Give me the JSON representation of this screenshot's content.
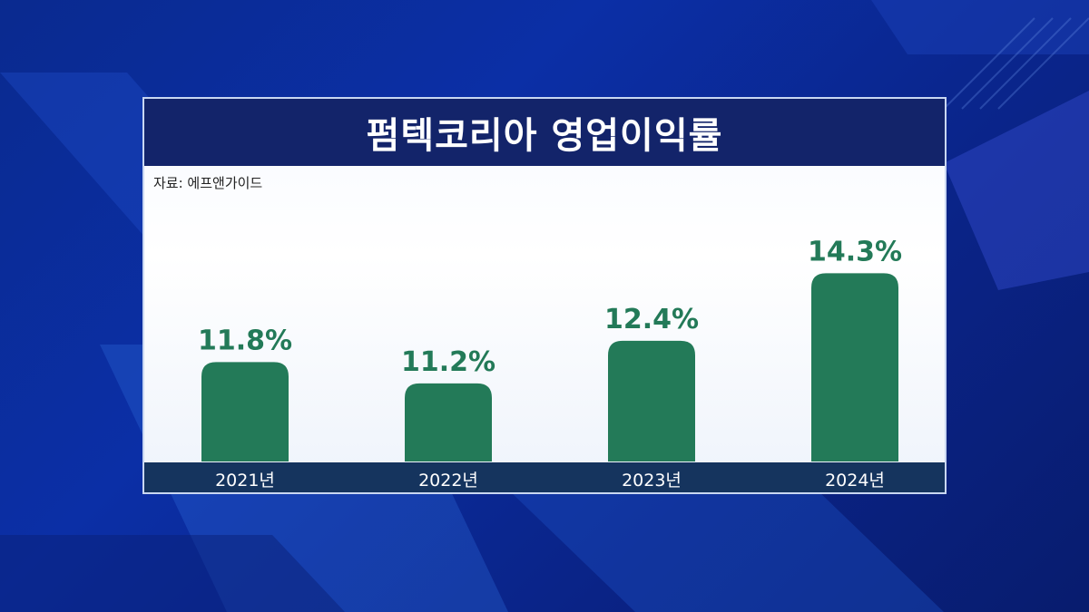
{
  "title": "펌텍코리아 영업이익률",
  "source": "자료: 에프앤가이드",
  "chart_data": {
    "type": "bar",
    "categories": [
      "2021년",
      "2022년",
      "2023년",
      "2024년"
    ],
    "values": [
      11.8,
      11.2,
      12.4,
      14.3
    ],
    "value_labels": [
      "11.8%",
      "11.2%",
      "12.4%",
      "14.3%"
    ],
    "xlabel": "",
    "ylabel": "",
    "ylim": [
      9,
      15
    ],
    "grid": false,
    "legend": "none",
    "bar_color": "#237a58"
  },
  "colors": {
    "background": "#0b2fa6",
    "title_bar": "#13246a",
    "axis_bar": "#15345e",
    "value_label": "#237a58"
  }
}
